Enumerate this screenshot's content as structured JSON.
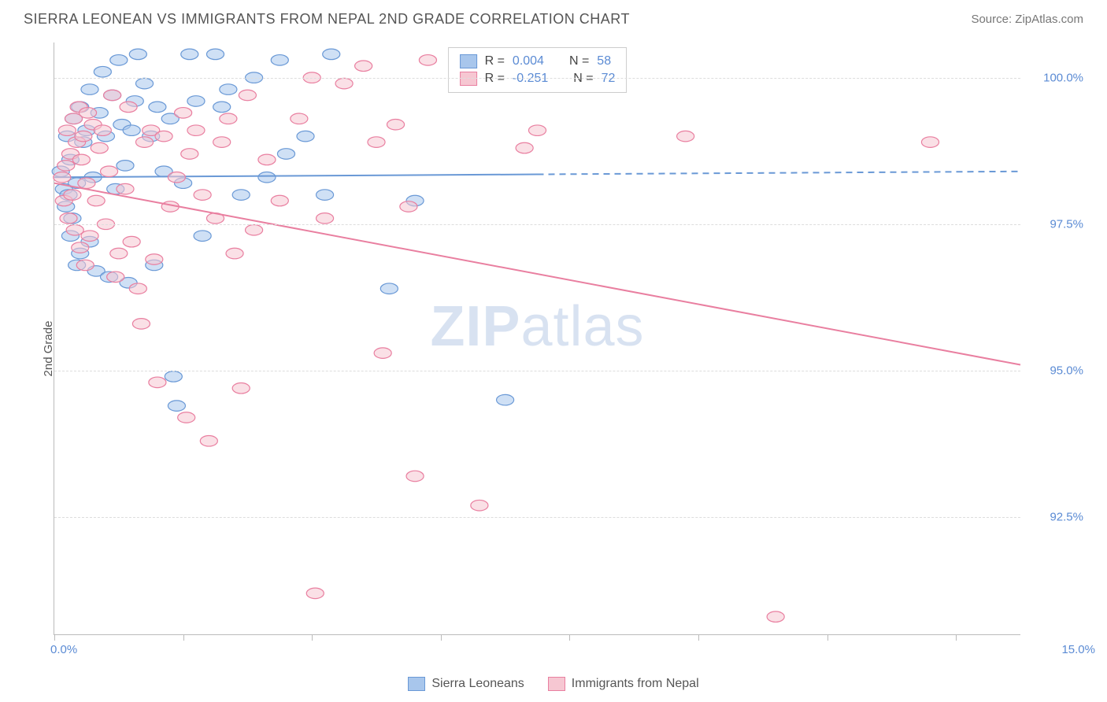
{
  "title": "SIERRA LEONEAN VS IMMIGRANTS FROM NEPAL 2ND GRADE CORRELATION CHART",
  "source": "Source: ZipAtlas.com",
  "ylabel": "2nd Grade",
  "watermark_bold": "ZIP",
  "watermark_light": "atlas",
  "chart": {
    "type": "scatter",
    "background_color": "#ffffff",
    "grid_color": "#dddddd",
    "axis_color": "#bbbbbb",
    "tick_label_color": "#5b8bd4",
    "text_color": "#555555",
    "marker_radius": 9,
    "marker_opacity": 0.55,
    "line_width": 2,
    "xlim": [
      0,
      15
    ],
    "ylim": [
      90.5,
      100.6
    ],
    "x_ticks": [
      0,
      2,
      4,
      6,
      8,
      10,
      12,
      14
    ],
    "y_ticks": [
      92.5,
      95.0,
      97.5,
      100.0
    ],
    "y_tick_labels": [
      "92.5%",
      "95.0%",
      "97.5%",
      "100.0%"
    ],
    "x_min_label": "0.0%",
    "x_max_label": "15.0%",
    "series": [
      {
        "name": "Sierra Leoneans",
        "color_fill": "#a8c6ec",
        "color_stroke": "#6a99d6",
        "R": "0.004",
        "N": "58",
        "regression": {
          "x1": 0,
          "y1": 98.3,
          "x2": 7.5,
          "y2": 98.35,
          "dash_after_x": 7.5,
          "dash_to_x": 15,
          "dash_to_y": 98.4
        },
        "points": [
          [
            0.1,
            98.4
          ],
          [
            0.15,
            98.1
          ],
          [
            0.18,
            97.8
          ],
          [
            0.2,
            99.0
          ],
          [
            0.22,
            98.0
          ],
          [
            0.25,
            98.6
          ],
          [
            0.25,
            97.3
          ],
          [
            0.28,
            97.6
          ],
          [
            0.3,
            99.3
          ],
          [
            0.35,
            98.2
          ],
          [
            0.35,
            96.8
          ],
          [
            0.4,
            99.5
          ],
          [
            0.4,
            97.0
          ],
          [
            0.45,
            98.9
          ],
          [
            0.5,
            99.1
          ],
          [
            0.55,
            99.8
          ],
          [
            0.55,
            97.2
          ],
          [
            0.6,
            98.3
          ],
          [
            0.65,
            96.7
          ],
          [
            0.7,
            99.4
          ],
          [
            0.75,
            100.1
          ],
          [
            0.8,
            99.0
          ],
          [
            0.85,
            96.6
          ],
          [
            0.9,
            99.7
          ],
          [
            0.95,
            98.1
          ],
          [
            1.0,
            100.3
          ],
          [
            1.05,
            99.2
          ],
          [
            1.1,
            98.5
          ],
          [
            1.15,
            96.5
          ],
          [
            1.2,
            99.1
          ],
          [
            1.25,
            99.6
          ],
          [
            1.3,
            100.4
          ],
          [
            1.4,
            99.9
          ],
          [
            1.5,
            99.0
          ],
          [
            1.55,
            96.8
          ],
          [
            1.6,
            99.5
          ],
          [
            1.7,
            98.4
          ],
          [
            1.8,
            99.3
          ],
          [
            1.85,
            94.9
          ],
          [
            1.9,
            94.4
          ],
          [
            2.0,
            98.2
          ],
          [
            2.1,
            100.4
          ],
          [
            2.2,
            99.6
          ],
          [
            2.3,
            97.3
          ],
          [
            2.5,
            100.4
          ],
          [
            2.6,
            99.5
          ],
          [
            2.7,
            99.8
          ],
          [
            2.9,
            98.0
          ],
          [
            3.1,
            100.0
          ],
          [
            3.3,
            98.3
          ],
          [
            3.5,
            100.3
          ],
          [
            3.6,
            98.7
          ],
          [
            3.9,
            99.0
          ],
          [
            4.2,
            98.0
          ],
          [
            4.3,
            100.4
          ],
          [
            5.2,
            96.4
          ],
          [
            5.6,
            97.9
          ],
          [
            7.0,
            94.5
          ]
        ]
      },
      {
        "name": "Immigrants from Nepal",
        "color_fill": "#f6c7d2",
        "color_stroke": "#e97fa0",
        "R": "-0.251",
        "N": "72",
        "regression": {
          "x1": 0,
          "y1": 98.2,
          "x2": 15,
          "y2": 95.1
        },
        "points": [
          [
            0.12,
            98.3
          ],
          [
            0.15,
            97.9
          ],
          [
            0.18,
            98.5
          ],
          [
            0.2,
            99.1
          ],
          [
            0.22,
            97.6
          ],
          [
            0.25,
            98.7
          ],
          [
            0.28,
            98.0
          ],
          [
            0.3,
            99.3
          ],
          [
            0.32,
            97.4
          ],
          [
            0.35,
            98.9
          ],
          [
            0.38,
            99.5
          ],
          [
            0.4,
            97.1
          ],
          [
            0.42,
            98.6
          ],
          [
            0.45,
            99.0
          ],
          [
            0.48,
            96.8
          ],
          [
            0.5,
            98.2
          ],
          [
            0.52,
            99.4
          ],
          [
            0.55,
            97.3
          ],
          [
            0.6,
            99.2
          ],
          [
            0.65,
            97.9
          ],
          [
            0.7,
            98.8
          ],
          [
            0.75,
            99.1
          ],
          [
            0.8,
            97.5
          ],
          [
            0.85,
            98.4
          ],
          [
            0.9,
            99.7
          ],
          [
            0.95,
            96.6
          ],
          [
            1.0,
            97.0
          ],
          [
            1.1,
            98.1
          ],
          [
            1.15,
            99.5
          ],
          [
            1.2,
            97.2
          ],
          [
            1.3,
            96.4
          ],
          [
            1.35,
            95.8
          ],
          [
            1.4,
            98.9
          ],
          [
            1.5,
            99.1
          ],
          [
            1.55,
            96.9
          ],
          [
            1.6,
            94.8
          ],
          [
            1.7,
            99.0
          ],
          [
            1.8,
            97.8
          ],
          [
            1.9,
            98.3
          ],
          [
            2.0,
            99.4
          ],
          [
            2.05,
            94.2
          ],
          [
            2.1,
            98.7
          ],
          [
            2.2,
            99.1
          ],
          [
            2.3,
            98.0
          ],
          [
            2.4,
            93.8
          ],
          [
            2.5,
            97.6
          ],
          [
            2.6,
            98.9
          ],
          [
            2.7,
            99.3
          ],
          [
            2.8,
            97.0
          ],
          [
            2.9,
            94.7
          ],
          [
            3.0,
            99.7
          ],
          [
            3.1,
            97.4
          ],
          [
            3.3,
            98.6
          ],
          [
            3.5,
            97.9
          ],
          [
            3.8,
            99.3
          ],
          [
            4.0,
            100.0
          ],
          [
            4.05,
            91.2
          ],
          [
            4.2,
            97.6
          ],
          [
            4.5,
            99.9
          ],
          [
            4.8,
            100.2
          ],
          [
            5.0,
            98.9
          ],
          [
            5.1,
            95.3
          ],
          [
            5.3,
            99.2
          ],
          [
            5.5,
            97.8
          ],
          [
            5.8,
            100.3
          ],
          [
            5.6,
            93.2
          ],
          [
            6.6,
            92.7
          ],
          [
            7.3,
            98.8
          ],
          [
            7.5,
            99.1
          ],
          [
            9.8,
            99.0
          ],
          [
            11.2,
            90.8
          ],
          [
            13.6,
            98.9
          ]
        ]
      }
    ]
  },
  "stats_labels": {
    "R": "R =",
    "N": "N ="
  }
}
